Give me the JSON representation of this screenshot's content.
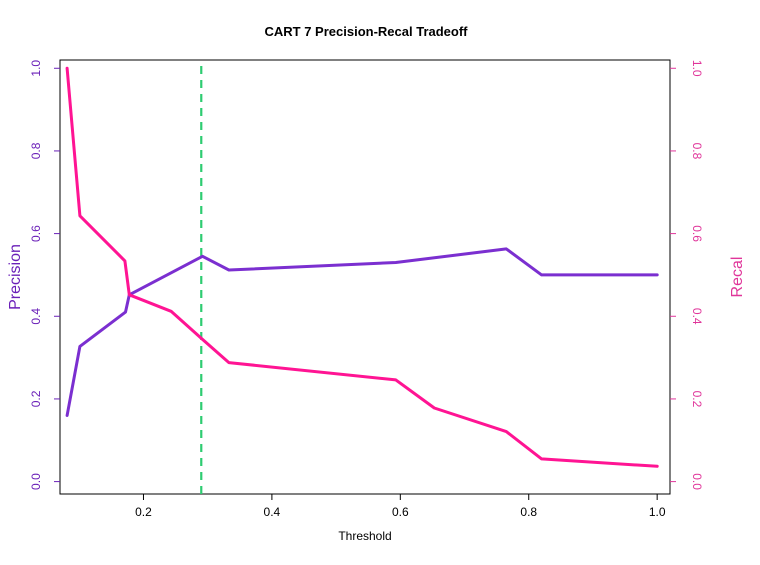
{
  "chart_data": {
    "type": "line",
    "title": "CART 7 Precision-Recal Tradeoff",
    "xlabel": "Threshold",
    "ylabel_left": "Precision",
    "ylabel_right": "Recal",
    "xlim": [
      0.07,
      1.02
    ],
    "ylim": [
      -0.03,
      1.02
    ],
    "x_ticks": [
      "0.2",
      "0.4",
      "0.6",
      "0.8",
      "1.0"
    ],
    "y_ticks": [
      "0.0",
      "0.2",
      "0.4",
      "0.6",
      "0.8",
      "1.0"
    ],
    "threshold_line": 0.29,
    "colors": {
      "precision": "#7B2FD0",
      "recall": "#FF1493",
      "threshold": "#2ECC71",
      "axis_left": "#6A1FB8",
      "axis_right": "#E0359A"
    },
    "series": [
      {
        "key": "precision",
        "x": [
          0.081,
          0.101,
          0.172,
          0.178,
          0.292,
          0.333,
          0.593,
          0.765,
          0.82,
          1.0
        ],
        "y": [
          0.16,
          0.327,
          0.41,
          0.452,
          0.545,
          0.512,
          0.53,
          0.563,
          0.5,
          0.5
        ]
      },
      {
        "key": "recall",
        "x": [
          0.081,
          0.101,
          0.171,
          0.178,
          0.243,
          0.292,
          0.333,
          0.593,
          0.653,
          0.765,
          0.82,
          1.0
        ],
        "y": [
          1.0,
          0.643,
          0.534,
          0.452,
          0.412,
          0.344,
          0.288,
          0.246,
          0.178,
          0.121,
          0.055,
          0.037
        ]
      }
    ]
  }
}
